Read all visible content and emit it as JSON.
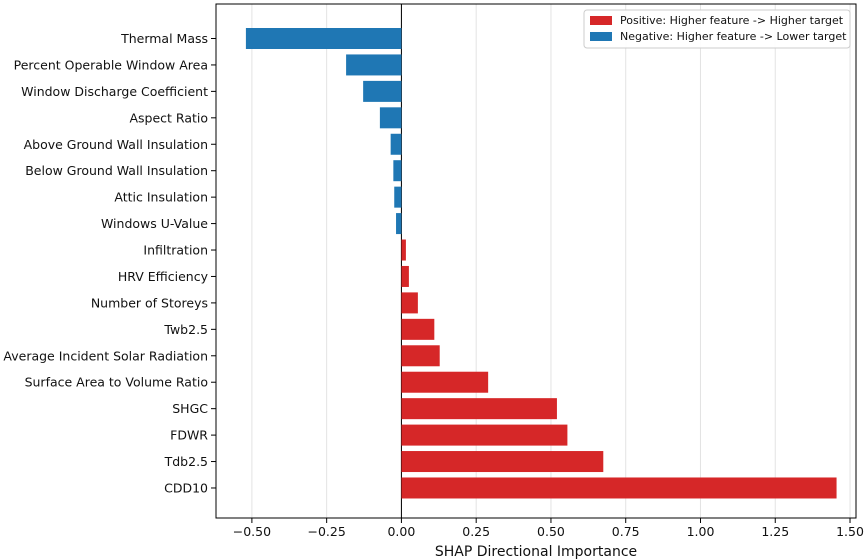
{
  "chart_data": {
    "type": "bar",
    "orientation": "horizontal",
    "categories": [
      "Thermal Mass",
      "Percent Operable Window Area",
      "Window Discharge Coefficient",
      "Aspect Ratio",
      "Above Ground Wall Insulation",
      "Below Ground Wall Insulation",
      "Attic Insulation",
      "Windows U-Value",
      "Infiltration",
      "HRV Efficiency",
      "Number of Storeys",
      "Twb2.5",
      "Average Incident Solar Radiation",
      "Surface Area to Volume Ratio",
      "SHGC",
      "FDWR",
      "Tdb2.5",
      "CDD10"
    ],
    "values": [
      -0.52,
      -0.185,
      -0.128,
      -0.072,
      -0.036,
      -0.027,
      -0.024,
      -0.018,
      0.015,
      0.025,
      0.055,
      0.11,
      0.128,
      0.29,
      0.52,
      0.555,
      0.675,
      1.455
    ],
    "xlabel": "SHAP Directional Importance",
    "xlim": [
      -0.62,
      1.52
    ],
    "xticks": [
      -0.5,
      -0.25,
      0.0,
      0.25,
      0.5,
      0.75,
      1.0,
      1.25,
      1.5
    ],
    "xtick_labels": [
      "−0.50",
      "−0.25",
      "0.00",
      "0.25",
      "0.50",
      "0.75",
      "1.00",
      "1.25",
      "1.50"
    ],
    "grid": "x",
    "legend": {
      "placement": "top-right",
      "entries": [
        {
          "label": "Positive: Higher feature -> Higher target",
          "color": "#d62728"
        },
        {
          "label": "Negative: Higher feature -> Lower target",
          "color": "#1f77b4"
        }
      ]
    },
    "colors": {
      "positive": "#d62728",
      "negative": "#1f77b4"
    }
  }
}
